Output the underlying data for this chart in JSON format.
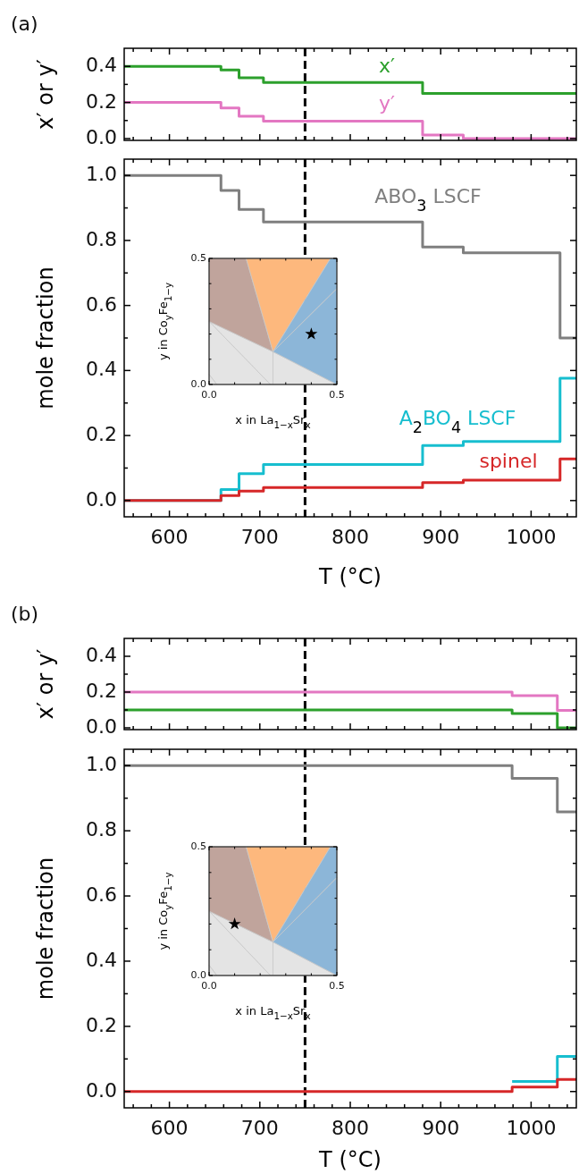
{
  "chart_data": [
    {
      "type": "step",
      "title": "(a)",
      "ylabel": "x′ or y′",
      "xlim": [
        550,
        1050
      ],
      "ylim": [
        -0.01,
        0.5
      ],
      "tick_labels": "y",
      "xticks": [
        {
          "value": 560,
          "label": null
        },
        {
          "value": 580,
          "label": null
        },
        600,
        {
          "value": 620,
          "label": null
        },
        {
          "value": 640,
          "label": null
        },
        {
          "value": 660,
          "label": null
        },
        {
          "value": 680,
          "label": null
        },
        700,
        {
          "value": 720,
          "label": null
        },
        {
          "value": 740,
          "label": null
        },
        {
          "value": 760,
          "label": null
        },
        {
          "value": 780,
          "label": null
        },
        800,
        {
          "value": 820,
          "label": null
        },
        {
          "value": 840,
          "label": null
        },
        {
          "value": 860,
          "label": null
        },
        {
          "value": 880,
          "label": null
        },
        900,
        {
          "value": 920,
          "label": null
        },
        {
          "value": 940,
          "label": null
        },
        {
          "value": 960,
          "label": null
        },
        {
          "value": 980,
          "label": null
        },
        1000,
        {
          "value": 1020,
          "label": null
        },
        {
          "value": 1040,
          "label": null
        }
      ],
      "yticks": [
        {
          "value": 0,
          "label": "0.0"
        },
        {
          "value": 0.1,
          "label": null
        },
        {
          "value": 0.2,
          "label": "0.2"
        },
        {
          "value": 0.3,
          "label": null
        },
        {
          "value": 0.4,
          "label": "0.4"
        }
      ],
      "series": [
        {
          "name": "x′",
          "color": "#2ca02c",
          "x": [
            550,
            657,
            677,
            704,
            880,
            1050
          ],
          "values": [
            0.4,
            0.38,
            0.336,
            0.31,
            0.25,
            0.25
          ]
        },
        {
          "name": "y′",
          "color": "#e377c2",
          "x": [
            550,
            657,
            677,
            704,
            880,
            925,
            1050
          ],
          "values": [
            0.2,
            0.17,
            0.124,
            0.096,
            0.02,
            0.0,
            0.0
          ]
        }
      ],
      "ref_lines": [
        {
          "axis": "x",
          "value": 750,
          "color": "#000000",
          "line_style": "dashed"
        }
      ]
    },
    {
      "type": "step",
      "xlabel": "T (°C)",
      "ylabel": "mole fraction",
      "xlim": [
        550,
        1050
      ],
      "ylim": [
        -0.05,
        1.05
      ],
      "xticks": [
        {
          "value": 560,
          "label": null
        },
        {
          "value": 580,
          "label": null
        },
        600,
        {
          "value": 620,
          "label": null
        },
        {
          "value": 640,
          "label": null
        },
        {
          "value": 660,
          "label": null
        },
        {
          "value": 680,
          "label": null
        },
        700,
        {
          "value": 720,
          "label": null
        },
        {
          "value": 740,
          "label": null
        },
        {
          "value": 760,
          "label": null
        },
        {
          "value": 780,
          "label": null
        },
        800,
        {
          "value": 820,
          "label": null
        },
        {
          "value": 840,
          "label": null
        },
        {
          "value": 860,
          "label": null
        },
        {
          "value": 880,
          "label": null
        },
        900,
        {
          "value": 920,
          "label": null
        },
        {
          "value": 940,
          "label": null
        },
        {
          "value": 960,
          "label": null
        },
        {
          "value": 980,
          "label": null
        },
        1000,
        {
          "value": 1020,
          "label": null
        },
        {
          "value": 1040,
          "label": null
        }
      ],
      "yticks": [
        {
          "value": 0,
          "label": "0.0"
        },
        {
          "value": 0.1,
          "label": null
        },
        {
          "value": 0.2,
          "label": "0.2"
        },
        {
          "value": 0.3,
          "label": null
        },
        {
          "value": 0.4,
          "label": "0.4"
        },
        {
          "value": 0.5,
          "label": null
        },
        {
          "value": 0.6,
          "label": "0.6"
        },
        {
          "value": 0.7,
          "label": null
        },
        {
          "value": 0.8,
          "label": "0.8"
        },
        {
          "value": 0.9,
          "label": null
        },
        {
          "value": 1,
          "label": "1.0"
        }
      ],
      "series": [
        {
          "name": "ABO$_{3}$ LSCF",
          "color": "#7f7f7f",
          "x": [
            550,
            657,
            677,
            704,
            880,
            925,
            1032,
            1050
          ],
          "values": [
            1.0,
            0.954,
            0.895,
            0.857,
            0.78,
            0.762,
            0.5,
            0.5
          ]
        },
        {
          "name": "A$_{2}$BO$_{4}$ LSCF",
          "color": "#17becf",
          "x": [
            550,
            657,
            677,
            704,
            880,
            925,
            1032,
            1050
          ],
          "values": [
            0.0,
            0.034,
            0.083,
            0.111,
            0.169,
            0.182,
            0.376,
            0.376
          ]
        },
        {
          "name": "spinel",
          "color": "#d62728",
          "x": [
            550,
            657,
            677,
            704,
            880,
            925,
            1032,
            1050
          ],
          "values": [
            0.0,
            0.015,
            0.029,
            0.04,
            0.055,
            0.063,
            0.128,
            0.128
          ]
        }
      ],
      "ref_lines": [
        {
          "axis": "x",
          "value": 750,
          "color": "#000000",
          "line_style": "dashed"
        }
      ]
    },
    {
      "type": "scatter",
      "xlabel": "x in La$_{1−x}$Sr$_{x}$",
      "ylabel": "y in Co$_{y}$Fe$_{1−y}$",
      "xlim": [
        0,
        0.5
      ],
      "ylim": [
        0,
        0.5
      ],
      "marker": "star",
      "xticks": [
        {
          "value": 0,
          "label": "0.0"
        },
        {
          "value": 0.1,
          "label": null
        },
        {
          "value": 0.2,
          "label": null
        },
        {
          "value": 0.3,
          "label": null
        },
        {
          "value": 0.4,
          "label": null
        },
        {
          "value": 0.5,
          "label": "0.5"
        }
      ],
      "yticks": [
        {
          "value": 0,
          "label": "0.0"
        },
        {
          "value": 0.1,
          "label": null
        },
        {
          "value": 0.2,
          "label": null
        },
        {
          "value": 0.3,
          "label": null
        },
        {
          "value": 0.4,
          "label": null
        },
        {
          "value": 0.5,
          "label": "0.5"
        }
      ],
      "series": [
        {
          "color": "#000000",
          "x": [
            0.4
          ],
          "values": [
            0.2
          ]
        }
      ]
    },
    {
      "type": "step",
      "title": "(b)",
      "ylabel": "x′ or y′",
      "xlim": [
        550,
        1050
      ],
      "ylim": [
        -0.01,
        0.5
      ],
      "tick_labels": "y",
      "xticks": [
        {
          "value": 560,
          "label": null
        },
        {
          "value": 580,
          "label": null
        },
        600,
        {
          "value": 620,
          "label": null
        },
        {
          "value": 640,
          "label": null
        },
        {
          "value": 660,
          "label": null
        },
        {
          "value": 680,
          "label": null
        },
        700,
        {
          "value": 720,
          "label": null
        },
        {
          "value": 740,
          "label": null
        },
        {
          "value": 760,
          "label": null
        },
        {
          "value": 780,
          "label": null
        },
        800,
        {
          "value": 820,
          "label": null
        },
        {
          "value": 840,
          "label": null
        },
        {
          "value": 860,
          "label": null
        },
        {
          "value": 880,
          "label": null
        },
        900,
        {
          "value": 920,
          "label": null
        },
        {
          "value": 940,
          "label": null
        },
        {
          "value": 960,
          "label": null
        },
        {
          "value": 980,
          "label": null
        },
        1000,
        {
          "value": 1020,
          "label": null
        },
        {
          "value": 1040,
          "label": null
        }
      ],
      "yticks": [
        {
          "value": 0,
          "label": "0.0"
        },
        {
          "value": 0.1,
          "label": null
        },
        {
          "value": 0.2,
          "label": "0.2"
        },
        {
          "value": 0.3,
          "label": null
        },
        {
          "value": 0.4,
          "label": "0.4"
        }
      ],
      "series": [
        {
          "color": "#e377c2",
          "x": [
            550,
            979,
            1029,
            1050
          ],
          "values": [
            0.2,
            0.18,
            0.097,
            0.097
          ]
        },
        {
          "color": "#2ca02c",
          "x": [
            550,
            979,
            1029,
            1050
          ],
          "values": [
            0.1,
            0.08,
            0.0,
            0.0
          ]
        }
      ],
      "ref_lines": [
        {
          "axis": "x",
          "value": 750,
          "color": "#000000",
          "line_style": "dashed"
        }
      ]
    },
    {
      "type": "step",
      "xlabel": "T (°C)",
      "ylabel": "mole fraction",
      "xlim": [
        550,
        1050
      ],
      "ylim": [
        -0.05,
        1.05
      ],
      "xticks": [
        {
          "value": 560,
          "label": null
        },
        {
          "value": 580,
          "label": null
        },
        600,
        {
          "value": 620,
          "label": null
        },
        {
          "value": 640,
          "label": null
        },
        {
          "value": 660,
          "label": null
        },
        {
          "value": 680,
          "label": null
        },
        700,
        {
          "value": 720,
          "label": null
        },
        {
          "value": 740,
          "label": null
        },
        {
          "value": 760,
          "label": null
        },
        {
          "value": 780,
          "label": null
        },
        800,
        {
          "value": 820,
          "label": null
        },
        {
          "value": 840,
          "label": null
        },
        {
          "value": 860,
          "label": null
        },
        {
          "value": 880,
          "label": null
        },
        900,
        {
          "value": 920,
          "label": null
        },
        {
          "value": 940,
          "label": null
        },
        {
          "value": 960,
          "label": null
        },
        {
          "value": 980,
          "label": null
        },
        1000,
        {
          "value": 1020,
          "label": null
        },
        {
          "value": 1040,
          "label": null
        }
      ],
      "yticks": [
        {
          "value": 0,
          "label": "0.0"
        },
        {
          "value": 0.1,
          "label": null
        },
        {
          "value": 0.2,
          "label": "0.2"
        },
        {
          "value": 0.3,
          "label": null
        },
        {
          "value": 0.4,
          "label": "0.4"
        },
        {
          "value": 0.5,
          "label": null
        },
        {
          "value": 0.6,
          "label": "0.6"
        },
        {
          "value": 0.7,
          "label": null
        },
        {
          "value": 0.8,
          "label": "0.8"
        },
        {
          "value": 0.9,
          "label": null
        },
        {
          "value": 1,
          "label": "1.0"
        }
      ],
      "series": [
        {
          "color": "#7f7f7f",
          "x": [
            550,
            979,
            1029,
            1050
          ],
          "values": [
            1.0,
            0.961,
            0.858,
            0.858
          ]
        },
        {
          "color": "#17becf",
          "x": [
            979,
            1029,
            1050
          ],
          "values": [
            0.031,
            0.108,
            0.108
          ]
        },
        {
          "color": "#d62728",
          "x": [
            550,
            979,
            1029,
            1050
          ],
          "values": [
            0.0,
            0.014,
            0.037,
            0.037
          ]
        }
      ],
      "ref_lines": [
        {
          "axis": "x",
          "value": 750,
          "color": "#000000",
          "line_style": "dashed"
        }
      ]
    },
    {
      "type": "scatter",
      "xlabel": "x in La$_{1−x}$Sr$_{x}$",
      "ylabel": "y in Co$_{y}$Fe$_{1−y}$",
      "xlim": [
        0,
        0.5
      ],
      "ylim": [
        0,
        0.5
      ],
      "marker": "star",
      "xticks": [
        {
          "value": 0,
          "label": "0.0"
        },
        {
          "value": 0.1,
          "label": null
        },
        {
          "value": 0.2,
          "label": null
        },
        {
          "value": 0.3,
          "label": null
        },
        {
          "value": 0.4,
          "label": null
        },
        {
          "value": 0.5,
          "label": "0.5"
        }
      ],
      "yticks": [
        {
          "value": 0,
          "label": "0.0"
        },
        {
          "value": 0.1,
          "label": null
        },
        {
          "value": 0.2,
          "label": null
        },
        {
          "value": 0.3,
          "label": null
        },
        {
          "value": 0.4,
          "label": null
        },
        {
          "value": 0.5,
          "label": "0.5"
        }
      ],
      "series": [
        {
          "color": "#000000",
          "x": [
            0.1
          ],
          "values": [
            0.2
          ]
        }
      ]
    }
  ]
}
